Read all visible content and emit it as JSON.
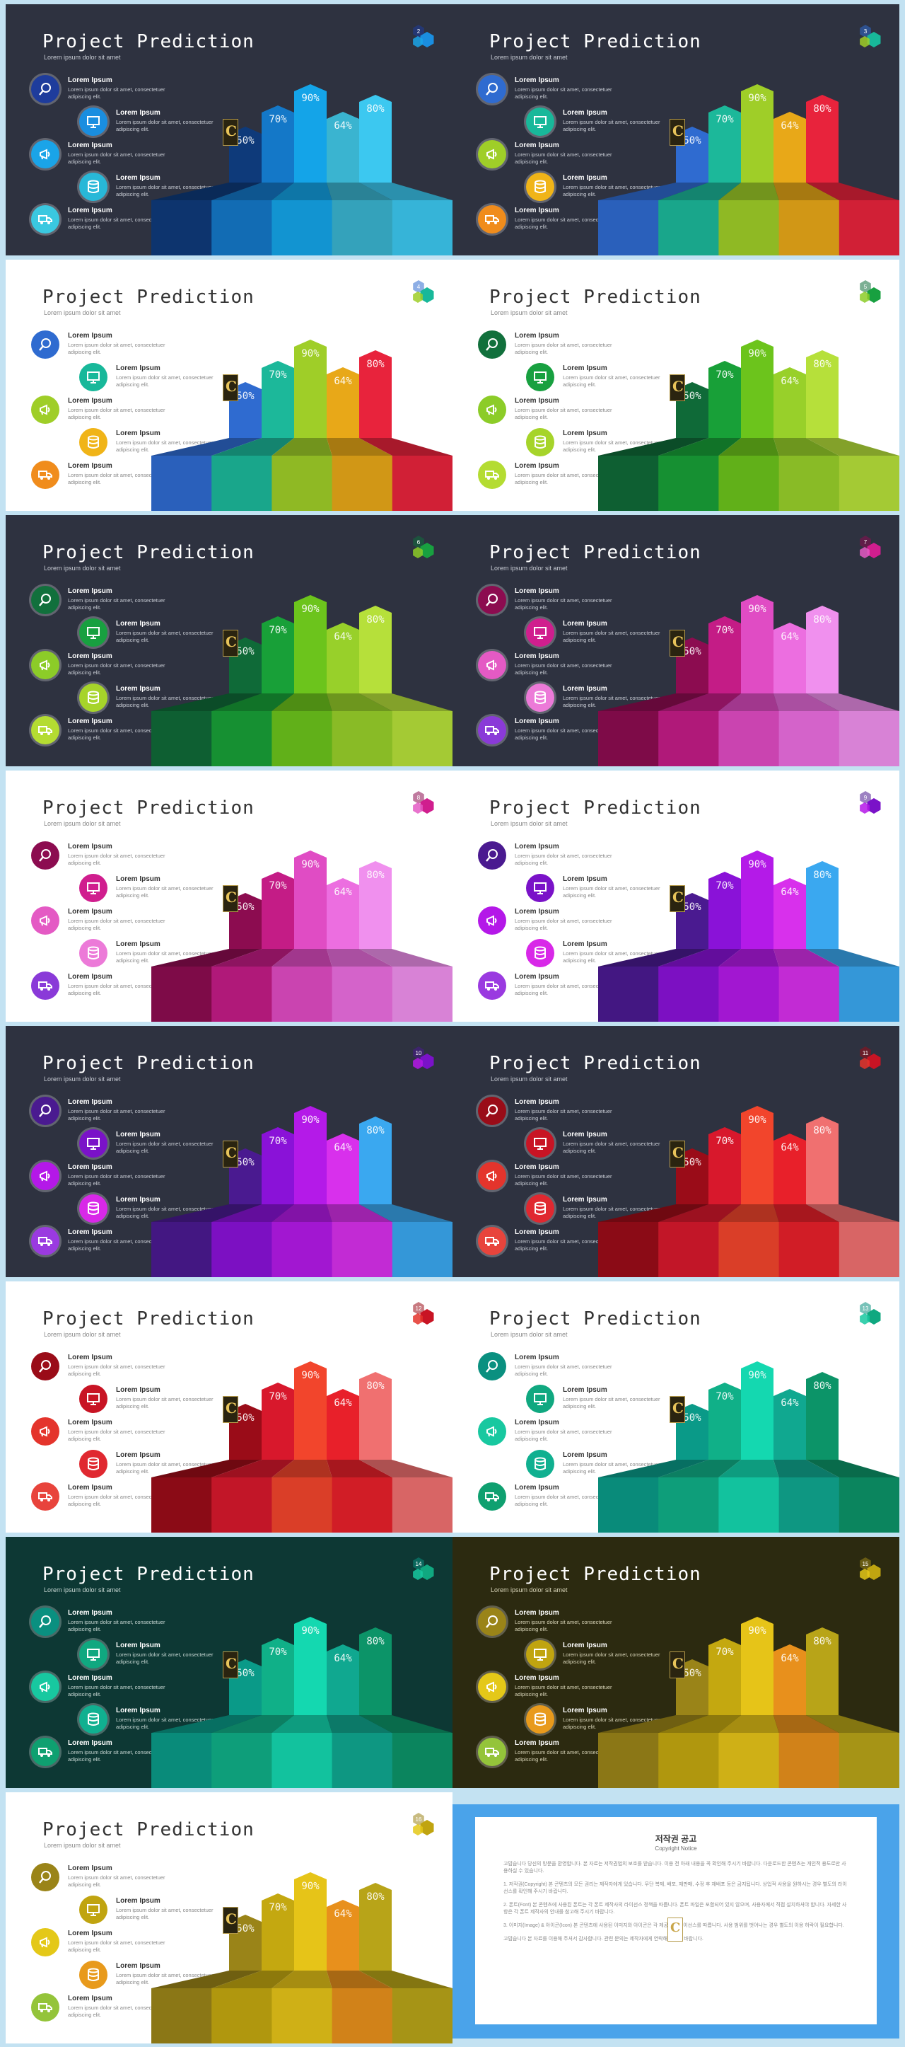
{
  "title": "Project Prediction",
  "subtitle": "Lorem ipsum dolor sit amet",
  "list_items": [
    {
      "title": "Lorem Ipsum",
      "body": "Lorem ipsum dolor sit amet, consectetuer adipiscing elit.",
      "icon": "magnifier-icon"
    },
    {
      "title": "Lorem Ipsum",
      "body": "Lorem ipsum dolor sit amet, consectetuer adipiscing elit.",
      "icon": "monitor-icon"
    },
    {
      "title": "Lorem Ipsum",
      "body": "Lorem ipsum dolor sit amet, consectetuer adipiscing elit.",
      "icon": "megaphone-icon"
    },
    {
      "title": "Lorem Ipsum",
      "body": "Lorem ipsum dolor sit amet, consectetuer adipiscing elit.",
      "icon": "database-icon"
    },
    {
      "title": "Lorem Ipsum",
      "body": "Lorem ipsum dolor sit amet, consectetuer adipiscing elit.",
      "icon": "truck-icon"
    }
  ],
  "logo_letter": "C",
  "chart_data": {
    "type": "bar",
    "categories": [
      "",
      "",
      "",
      "",
      ""
    ],
    "values": [
      50,
      70,
      90,
      64,
      80
    ],
    "labels": [
      "50%",
      "70%",
      "90%",
      "64%",
      "80%"
    ]
  },
  "slides": [
    {
      "number": "2",
      "bg": "#2e3240",
      "text": "#ffffff",
      "sub": "#c8ccd4",
      "icons": [
        "#1e3c9c",
        "#1a8ee0",
        "#1aa4e8",
        "#28b8d8",
        "#3ac8e0"
      ],
      "bars": [
        "#0e3a7a",
        "#1478c8",
        "#14a4e8",
        "#3ab4d0",
        "#3cc8f0"
      ]
    },
    {
      "number": "3",
      "bg": "#2e3240",
      "text": "#ffffff",
      "sub": "#c8ccd4",
      "icons": [
        "#2f6bd0",
        "#18b89a",
        "#9fce28",
        "#f0b418",
        "#f08c1c"
      ],
      "bars": [
        "#2f6bd0",
        "#1cb89a",
        "#9fce28",
        "#e8a818",
        "#e8233c"
      ]
    },
    {
      "number": "4",
      "bg": "#ffffff",
      "text": "#333333",
      "sub": "#888888",
      "icons": [
        "#2f6bd0",
        "#18b89a",
        "#9fce28",
        "#f0b418",
        "#f08c1c"
      ],
      "bars": [
        "#2f6bd0",
        "#1cb89a",
        "#9fce28",
        "#e8a818",
        "#e8233c"
      ]
    },
    {
      "number": "5",
      "bg": "#ffffff",
      "text": "#333333",
      "sub": "#888888",
      "icons": [
        "#11703c",
        "#18a040",
        "#8ccc28",
        "#a6d42a",
        "#b4dc32"
      ],
      "bars": [
        "#0f6a38",
        "#18a038",
        "#6cc41c",
        "#98d02a",
        "#b6e03a"
      ]
    },
    {
      "number": "6",
      "bg": "#2e3240",
      "text": "#ffffff",
      "sub": "#c8ccd4",
      "icons": [
        "#11703c",
        "#18a040",
        "#8ccc28",
        "#a6d42a",
        "#b4dc32"
      ],
      "bars": [
        "#0f6a38",
        "#18a038",
        "#6cc41c",
        "#98d02a",
        "#b6e03a"
      ]
    },
    {
      "number": "7",
      "bg": "#2e3240",
      "text": "#ffffff",
      "sub": "#c8ccd4",
      "icons": [
        "#8c0c50",
        "#d01e8e",
        "#e45ac4",
        "#ec7ad8",
        "#8a3ad8"
      ],
      "bars": [
        "#8c0c50",
        "#c41c86",
        "#e04cc4",
        "#ec6ee0",
        "#f090ee"
      ]
    },
    {
      "number": "8",
      "bg": "#ffffff",
      "text": "#333333",
      "sub": "#888888",
      "icons": [
        "#8c0c50",
        "#d01e8e",
        "#e45ac4",
        "#ec7ad8",
        "#8a3ad8"
      ],
      "bars": [
        "#8c0c50",
        "#c41c86",
        "#e04cc4",
        "#ec6ee0",
        "#f090ee"
      ]
    },
    {
      "number": "9",
      "bg": "#ffffff",
      "text": "#333333",
      "sub": "#888888",
      "icons": [
        "#4a1a90",
        "#7a12c8",
        "#b418e8",
        "#d828e8",
        "#9a3ae0"
      ],
      "bars": [
        "#4a1a90",
        "#8a12d8",
        "#b41ae8",
        "#d830ec",
        "#3aa8f0"
      ]
    },
    {
      "number": "10",
      "bg": "#2e3240",
      "text": "#ffffff",
      "sub": "#c8ccd4",
      "icons": [
        "#4a1a90",
        "#7a12c8",
        "#b418e8",
        "#d828e8",
        "#9a3ae0"
      ],
      "bars": [
        "#4a1a90",
        "#8a12d8",
        "#b41ae8",
        "#d830ec",
        "#3aa8f0"
      ]
    },
    {
      "number": "11",
      "bg": "#2e3240",
      "text": "#ffffff",
      "sub": "#c8ccd4",
      "icons": [
        "#9a0c18",
        "#c81424",
        "#e4342c",
        "#e02830",
        "#e8443c"
      ],
      "bars": [
        "#9a0c18",
        "#d8182c",
        "#f2452c",
        "#e8202a",
        "#f07070"
      ]
    },
    {
      "number": "12",
      "bg": "#ffffff",
      "text": "#333333",
      "sub": "#888888",
      "icons": [
        "#9a0c18",
        "#c81424",
        "#e4342c",
        "#e02830",
        "#e8443c"
      ],
      "bars": [
        "#9a0c18",
        "#d8182c",
        "#f2452c",
        "#e8202a",
        "#f07070"
      ]
    },
    {
      "number": "13",
      "bg": "#ffffff",
      "text": "#333333",
      "sub": "#888888",
      "icons": [
        "#0a9080",
        "#10a880",
        "#18c8a0",
        "#10b090",
        "#0fa070"
      ],
      "bars": [
        "#0a9a88",
        "#10b088",
        "#14d8b0",
        "#10a890",
        "#0c9468"
      ]
    },
    {
      "number": "14",
      "bg": "#0d3834",
      "text": "#ffffff",
      "sub": "#c8d8d4",
      "icons": [
        "#0a9080",
        "#10a880",
        "#18c8a0",
        "#10b090",
        "#0fa070"
      ],
      "bars": [
        "#0a9a88",
        "#10b088",
        "#14d8b0",
        "#10a890",
        "#0c9468"
      ]
    },
    {
      "number": "15",
      "bg": "#2c2a10",
      "text": "#ffffff",
      "sub": "#d8d4b8",
      "icons": [
        "#9a8418",
        "#c0a410",
        "#e4c818",
        "#e89a1c",
        "#94c43a"
      ],
      "bars": [
        "#9a8418",
        "#c4a810",
        "#e6c418",
        "#e8901c",
        "#b8a418"
      ]
    },
    {
      "number": "16",
      "bg": "#ffffff",
      "text": "#333333",
      "sub": "#888888",
      "icons": [
        "#9a8418",
        "#c0a410",
        "#e4c818",
        "#e89a1c",
        "#94c43a"
      ],
      "bars": [
        "#9a8418",
        "#c4a810",
        "#e6c418",
        "#e8901c",
        "#b8a418"
      ]
    }
  ],
  "notice": {
    "title": "저작권 공고",
    "subtitle": "Copyright Notice",
    "paragraphs": [
      "고맙습니다 당신의 방문을 환영합니다. 본 자료는 저작권법의 보호를 받습니다. 이용 전 아래 내용을 꼭 확인해 주시기 바랍니다. 다운로드한 콘텐츠는 개인적 용도로만 사용하실 수 있습니다.",
      "1. 저작권(Copyright) 본 콘텐츠의 모든 권리는 제작자에게 있습니다. 무단 복제, 배포, 재판매, 수정 후 재배포 등은 금지됩니다. 상업적 사용을 원하시는 경우 별도의 라이선스를 확인해 주시기 바랍니다.",
      "2. 폰트(Font) 본 콘텐츠에 사용된 폰트는 각 폰트 제작사의 라이선스 정책을 따릅니다. 폰트 파일은 포함되어 있지 않으며, 사용자께서 직접 설치하셔야 합니다. 자세한 사항은 각 폰트 제작사의 안내를 참고해 주시기 바랍니다.",
      "3. 이미지(Image) & 아이콘(Icon) 본 콘텐츠에 사용된 이미지와 아이콘은 각 제공처의 라이선스를 따릅니다. 사용 범위를 벗어나는 경우 별도의 이용 허락이 필요합니다.",
      "고맙습니다 본 자료를 이용해 주셔서 감사합니다. 관련 문의는 제작자에게 연락해 주시기 바랍니다."
    ]
  }
}
